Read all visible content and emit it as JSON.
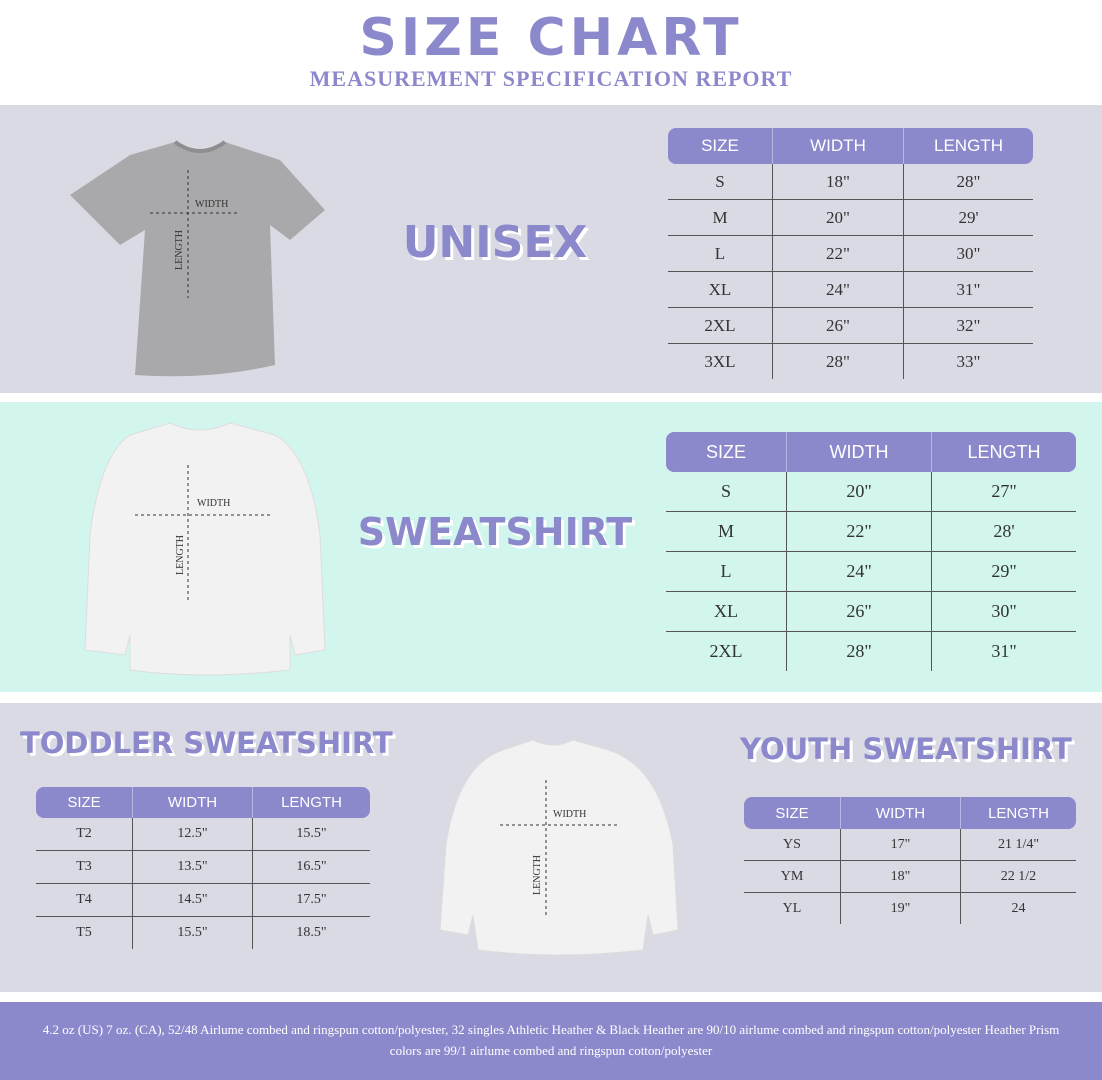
{
  "header": {
    "title": "SIZE CHART",
    "subtitle": "MEASUREMENT SPECIFICATION REPORT"
  },
  "sections": [
    {
      "title": "UNISEX",
      "image_labels": [
        "WIDTH",
        "LENGTH"
      ],
      "table": {
        "columns": [
          "SIZE",
          "WIDTH",
          "LENGTH"
        ],
        "rows": [
          [
            "S",
            "18\"",
            "28\""
          ],
          [
            "M",
            "20\"",
            "29'"
          ],
          [
            "L",
            "22\"",
            "30\""
          ],
          [
            "XL",
            "24\"",
            "31\""
          ],
          [
            "2XL",
            "26\"",
            "32\""
          ],
          [
            "3XL",
            "28\"",
            "33\""
          ]
        ]
      }
    },
    {
      "title": "SWEATSHIRT",
      "image_labels": [
        "WIDTH",
        "LENGTH"
      ],
      "table": {
        "columns": [
          "SIZE",
          "WIDTH",
          "LENGTH"
        ],
        "rows": [
          [
            "S",
            "20\"",
            "27\""
          ],
          [
            "M",
            "22\"",
            "28'"
          ],
          [
            "L",
            "24\"",
            "29\""
          ],
          [
            "XL",
            "26\"",
            "30\""
          ],
          [
            "2XL",
            "28\"",
            "31\""
          ]
        ]
      }
    },
    {
      "title": "TODDLER SWEATSHIRT",
      "table": {
        "columns": [
          "SIZE",
          "WIDTH",
          "LENGTH"
        ],
        "rows": [
          [
            "T2",
            "12.5\"",
            "15.5\""
          ],
          [
            "T3",
            "13.5\"",
            "16.5\""
          ],
          [
            "T4",
            "14.5\"",
            "17.5\""
          ],
          [
            "T5",
            "15.5\"",
            "18.5\""
          ]
        ]
      }
    },
    {
      "title": "YOUTH SWEATSHIRT",
      "image_labels": [
        "WIDTH",
        "LENGTH"
      ],
      "table": {
        "columns": [
          "SIZE",
          "WIDTH",
          "LENGTH"
        ],
        "rows": [
          [
            "YS",
            "17\"",
            "21 1/4\""
          ],
          [
            "YM",
            "18\"",
            "22 1/2"
          ],
          [
            "YL",
            "19\"",
            "24"
          ]
        ]
      }
    }
  ],
  "footer": "4.2 oz (US) 7 oz. (CA), 52/48 Airlume combed and ringspun cotton/polyester, 32 singles Athletic Heather & Black Heather are 90/10 airlume combed and ringspun cotton/polyester Heather Prism colors are 99/1 airlume combed and ringspun cotton/polyester"
}
